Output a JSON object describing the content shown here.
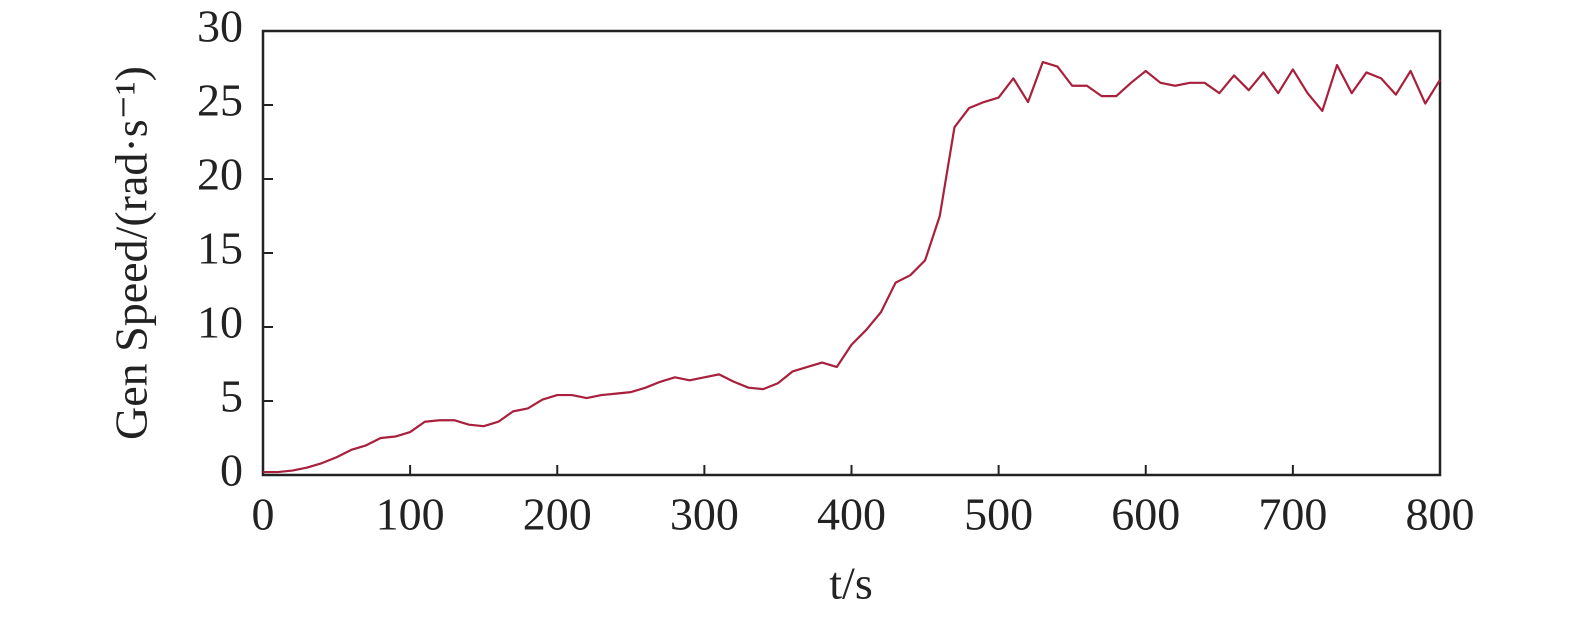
{
  "chart_data": {
    "type": "line",
    "x_label": "t/s",
    "y_label": "Gen Speed/(rad·s⁻¹)",
    "x": [
      0,
      10,
      20,
      30,
      40,
      50,
      60,
      70,
      80,
      90,
      100,
      110,
      120,
      130,
      140,
      150,
      160,
      170,
      180,
      190,
      200,
      210,
      220,
      230,
      240,
      250,
      260,
      270,
      280,
      290,
      300,
      310,
      320,
      330,
      340,
      350,
      360,
      370,
      380,
      390,
      400,
      410,
      420,
      430,
      440,
      450,
      460,
      470,
      480,
      490,
      500,
      510,
      520,
      530,
      540,
      550,
      560,
      570,
      580,
      590,
      600,
      610,
      620,
      630,
      640,
      650,
      660,
      670,
      680,
      690,
      700,
      710,
      720,
      730,
      740,
      750,
      760,
      770,
      780,
      790,
      800
    ],
    "series": [
      {
        "color": "#a8203c",
        "values": [
          0.2,
          0.2,
          0.3,
          0.5,
          0.8,
          1.2,
          1.7,
          2.0,
          2.5,
          2.6,
          2.9,
          3.6,
          3.7,
          3.7,
          3.4,
          3.3,
          3.6,
          4.3,
          4.5,
          5.1,
          5.4,
          5.4,
          5.2,
          5.4,
          5.5,
          5.6,
          5.9,
          6.3,
          6.6,
          6.4,
          6.6,
          6.8,
          6.3,
          5.9,
          5.8,
          6.2,
          7.0,
          7.3,
          7.6,
          7.3,
          8.8,
          9.8,
          11.0,
          13.0,
          13.5,
          14.5,
          17.5,
          23.5,
          24.8,
          25.2,
          25.5,
          26.8,
          25.2,
          27.9,
          27.6,
          26.3,
          26.3,
          25.6,
          25.6,
          26.5,
          27.3,
          26.5,
          26.3,
          26.5,
          26.5,
          25.8,
          27.0,
          26.0,
          27.2,
          25.8,
          27.4,
          25.8,
          24.6,
          27.7,
          25.8,
          27.2,
          26.8,
          25.7,
          27.3,
          25.1,
          26.7
        ]
      }
    ],
    "xlim": [
      0,
      800
    ],
    "xticks": [
      0,
      100,
      200,
      300,
      400,
      500,
      600,
      700,
      800
    ],
    "ylim": [
      0,
      30
    ],
    "yticks": [
      0,
      5,
      10,
      15,
      20,
      25,
      30
    ],
    "grid": false
  }
}
